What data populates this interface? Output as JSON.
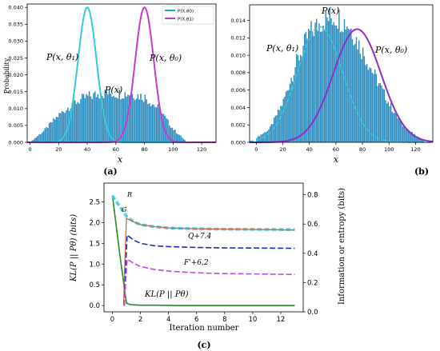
{
  "chart_data": [
    {
      "type": "bar",
      "panel_label": "(a)",
      "xlabel": "x",
      "ylabel": "Probability",
      "xlim": [
        -2,
        130
      ],
      "ylim": [
        0,
        0.041
      ],
      "xticks": [
        0,
        20,
        40,
        60,
        80,
        100,
        120
      ],
      "yticks": [
        0.0,
        0.005,
        0.01,
        0.015,
        0.02,
        0.025,
        0.03,
        0.035,
        0.04
      ],
      "ytick_labels": [
        "0.000",
        "0.005",
        "0.010",
        "0.015",
        "0.020",
        "0.025",
        "0.030",
        "0.035",
        "0.040"
      ],
      "legend": [
        "P(X,θ0)",
        "P(X,θ1)"
      ],
      "legend_position": "top-right",
      "annotations": [
        "P(x, θ₁)",
        "P(x, θ₀)",
        "P(x)"
      ],
      "histogram": {
        "name": "P(x)",
        "x": [
          0,
          10,
          20,
          30,
          40,
          50,
          60,
          70,
          80,
          90,
          100,
          105,
          110
        ],
        "y": [
          0.0,
          0.0035,
          0.008,
          0.0115,
          0.0135,
          0.0145,
          0.0145,
          0.0145,
          0.0135,
          0.01,
          0.004,
          0.002,
          0.0
        ]
      },
      "series": [
        {
          "name": "P(X,θ1)",
          "mean": 40,
          "sd": 6.5,
          "peak": 0.04
        },
        {
          "name": "P(X,θ0)",
          "mean": 80,
          "sd": 6.5,
          "peak": 0.04
        }
      ]
    },
    {
      "type": "bar",
      "panel_label": "(b)",
      "xlabel": "x",
      "xlim": [
        -5,
        133
      ],
      "ylim": [
        0,
        0.0158
      ],
      "xticks": [
        0,
        20,
        40,
        60,
        80,
        100,
        120
      ],
      "yticks": [
        0.0,
        0.002,
        0.004,
        0.006,
        0.008,
        0.01,
        0.012,
        0.014
      ],
      "ytick_labels": [
        "0.000",
        "0.002",
        "0.004",
        "0.006",
        "0.008",
        "0.010",
        "0.012",
        "0.014"
      ],
      "annotations": [
        "P(x, θ₁)",
        "P(x)",
        "P(x, θ₀)"
      ],
      "histogram": {
        "name": "P(x)",
        "x": [
          0,
          10,
          20,
          30,
          40,
          50,
          60,
          70,
          80,
          90,
          100,
          110,
          120,
          128
        ],
        "y": [
          0.0005,
          0.0015,
          0.0045,
          0.009,
          0.0125,
          0.014,
          0.0145,
          0.0135,
          0.0105,
          0.0075,
          0.0045,
          0.002,
          0.0008,
          0.0
        ]
      },
      "series": [
        {
          "name": "P(x, θ₁)",
          "mean": 48,
          "sd": 17,
          "peak": 0.0133
        },
        {
          "name": "P(x, θ₀)",
          "mean": 76,
          "sd": 18,
          "peak": 0.013
        }
      ]
    },
    {
      "type": "line",
      "panel_label": "(c)",
      "xlabel": "Iteration number",
      "ylabel": "KL(P || Pθ) (bits)",
      "ylabel_right": "Information or entropy (bits)",
      "xlim": [
        -0.6,
        13.6
      ],
      "ylim": [
        -0.15,
        2.95
      ],
      "ylim_right": [
        0,
        0.88
      ],
      "xticks": [
        0,
        2,
        4,
        6,
        8,
        10,
        12
      ],
      "yticks": [
        0.0,
        0.5,
        1.0,
        1.5,
        2.0,
        2.5
      ],
      "ytick_labels": [
        "0.0",
        "0.5",
        "1.0",
        "1.5",
        "2.0",
        "2.5"
      ],
      "yticks_right": [
        0.0,
        0.2,
        0.4,
        0.6,
        0.8
      ],
      "ytick_labels_right": [
        "0.0",
        "0.2",
        "0.4",
        "0.6",
        "0.8"
      ],
      "series": [
        {
          "name": "KL(P || Pθ)",
          "axis": "left",
          "color": "#2a8a2a",
          "x": [
            0,
            0.5,
            1.0,
            1.2,
            1.5,
            2,
            3,
            5,
            8,
            13
          ],
          "y": [
            2.65,
            1.3,
            0.06,
            0.03,
            0.02,
            0.01,
            0.01,
            0.0,
            0.0,
            0.0
          ]
        },
        {
          "name": "R",
          "axis": "left",
          "color": "#4fd0e8",
          "x": [
            0,
            0.5,
            1.0,
            1.5,
            2,
            3,
            4,
            6,
            8,
            13
          ],
          "y": [
            2.65,
            2.4,
            2.15,
            2.02,
            1.95,
            1.9,
            1.87,
            1.85,
            1.84,
            1.83
          ]
        },
        {
          "name": "G",
          "axis": "left",
          "color": "#c86a4a",
          "x": [
            0.8,
            0.9,
            1.0,
            1.5,
            2,
            3,
            4,
            6,
            8,
            13
          ],
          "y": [
            0.0,
            1.2,
            2.1,
            2.02,
            1.95,
            1.9,
            1.87,
            1.85,
            1.84,
            1.82
          ]
        },
        {
          "name": "Q+7.4",
          "axis": "left",
          "color": "#1a2fc0",
          "x": [
            0.85,
            0.95,
            1.05,
            1.5,
            2,
            3,
            4,
            6,
            8,
            13
          ],
          "y": [
            0.0,
            1.0,
            1.7,
            1.58,
            1.5,
            1.44,
            1.42,
            1.4,
            1.39,
            1.38
          ]
        },
        {
          "name": "F'+6.2",
          "axis": "left",
          "color": "#b84de0",
          "x": [
            0.85,
            0.95,
            1.05,
            1.5,
            2,
            3,
            4,
            6,
            8,
            13
          ],
          "y": [
            0.0,
            0.6,
            1.12,
            1.02,
            0.94,
            0.87,
            0.83,
            0.79,
            0.77,
            0.75
          ]
        }
      ],
      "annotations": [
        "R",
        "G",
        "Q+7.4",
        "F'+6.2",
        "KL(P || Pθ)"
      ]
    }
  ]
}
